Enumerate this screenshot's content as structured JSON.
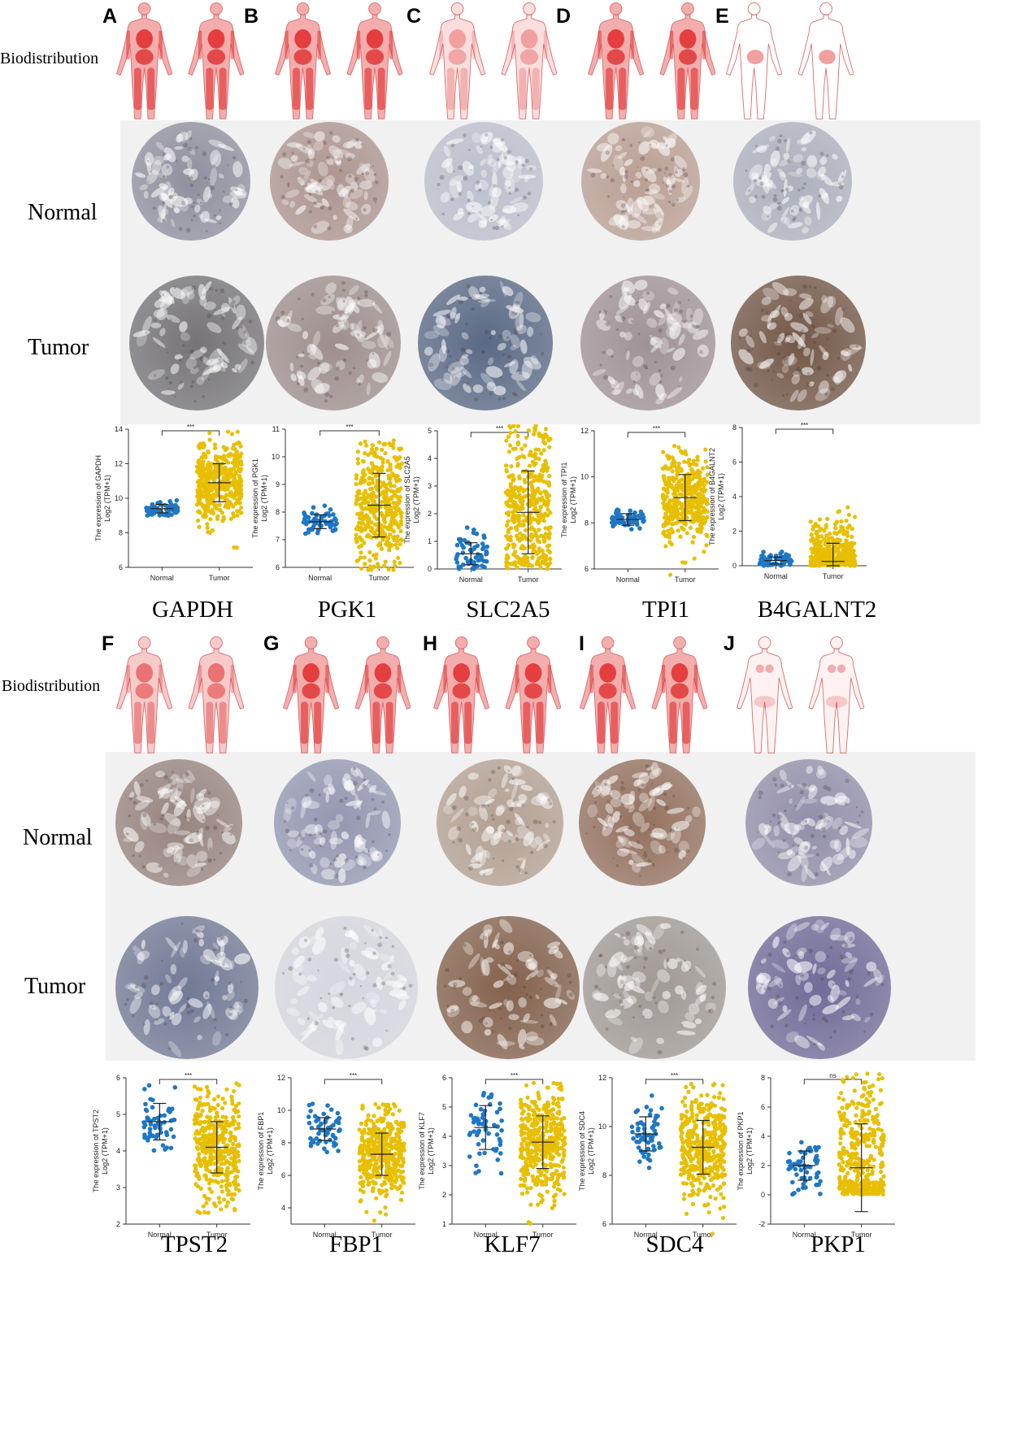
{
  "row_labels": {
    "biodistribution": "Biodistribution",
    "normal": "Normal",
    "tumor": "Tumor"
  },
  "panels": [
    {
      "letter": "A",
      "gene": "GAPDH",
      "plot": {
        "ymin": 6,
        "ymax": 14,
        "ticks": [
          6,
          8,
          10,
          12,
          14
        ],
        "sig": "***",
        "ylabel1": "The expression of GAPDH",
        "ylabel2": "Log2 (TPM+1)",
        "normal": {
          "mean": 9.4,
          "sd": 0.25,
          "lo": 9.0,
          "hi": 10.2
        },
        "tumor": {
          "mean": 10.9,
          "sd": 1.1,
          "lo": 6.5,
          "hi": 13.9
        }
      },
      "bio": "high",
      "normal_stain": "#8a8b9a",
      "tumor_stain": "#6f6d72"
    },
    {
      "letter": "B",
      "gene": "PGK1",
      "plot": {
        "ymin": 6,
        "ymax": 11,
        "ticks": [
          6,
          7,
          8,
          9,
          10,
          11
        ],
        "sig": "***",
        "ylabel1": "The expression of PGK1",
        "ylabel2": "Log2 (TPM+1)",
        "normal": {
          "mean": 7.65,
          "sd": 0.25,
          "lo": 7.2,
          "hi": 8.4
        },
        "tumor": {
          "mean": 8.25,
          "sd": 1.15,
          "lo": 5.9,
          "hi": 10.6
        }
      },
      "bio": "high",
      "normal_stain": "#a9908a",
      "tumor_stain": "#9a8a88"
    },
    {
      "letter": "C",
      "gene": "SLC2A5",
      "plot": {
        "ymin": 0,
        "ymax": 5,
        "ticks": [
          0,
          1,
          2,
          3,
          4,
          5
        ],
        "sig": "***",
        "ylabel1": "The expression of SLC2A5",
        "ylabel2": "Log2 (TPM+1)",
        "normal": {
          "mean": 0.55,
          "sd": 0.4,
          "lo": 0,
          "hi": 3.3
        },
        "tumor": {
          "mean": 2.05,
          "sd": 1.5,
          "lo": 0,
          "hi": 5.2
        }
      },
      "bio": "low",
      "normal_stain": "#b9bccb",
      "tumor_stain": "#52627f"
    },
    {
      "letter": "D",
      "gene": "TPI1",
      "plot": {
        "ymin": 6,
        "ymax": 12,
        "ticks": [
          6,
          8,
          10,
          12
        ],
        "sig": "***",
        "ylabel1": "The expression of TPI1",
        "ylabel2": "Log2 (TPM+1)",
        "normal": {
          "mean": 8.15,
          "sd": 0.25,
          "lo": 7.7,
          "hi": 8.6
        },
        "tumor": {
          "mean": 9.1,
          "sd": 1.0,
          "lo": 5.3,
          "hi": 11.4
        }
      },
      "bio": "high",
      "normal_stain": "#b79b8f",
      "tumor_stain": "#9b8d92"
    },
    {
      "letter": "E",
      "gene": "B4GALNT2",
      "plot": {
        "ymin": 0,
        "ymax": 8,
        "ticks": [
          0,
          2,
          4,
          6,
          8
        ],
        "sig": "***",
        "ylabel1": "The expression of B4GALNT2",
        "ylabel2": "Log2 (TPM+1)",
        "normal": {
          "mean": 0.3,
          "sd": 0.2,
          "lo": 0,
          "hi": 1.0
        },
        "tumor": {
          "mean": 0.25,
          "sd": 1.05,
          "lo": 0,
          "hi": 7.2
        }
      },
      "bio": "gut",
      "normal_stain": "#a9adbb",
      "tumor_stain": "#6c4f3e"
    },
    {
      "letter": "F",
      "gene": "TPST2",
      "plot": {
        "ymin": 2,
        "ymax": 6,
        "ticks": [
          2,
          3,
          4,
          5,
          6
        ],
        "sig": "***",
        "ylabel1": "The expression of TPST2",
        "ylabel2": "Log2 (TPM+1)",
        "normal": {
          "mean": 4.8,
          "sd": 0.5,
          "lo": 4.0,
          "hi": 5.8
        },
        "tumor": {
          "mean": 4.1,
          "sd": 0.7,
          "lo": 2.3,
          "hi": 5.9
        }
      },
      "bio": "mid",
      "normal_stain": "#927e78",
      "tumor_stain": "#6b7390"
    },
    {
      "letter": "G",
      "gene": "FBP1",
      "plot": {
        "ymin": 3,
        "ymax": 12,
        "ticks": [
          4,
          6,
          8,
          10,
          12
        ],
        "sig": "***",
        "ylabel1": "The expression of FBP1",
        "ylabel2": "Log2 (TPM+1)",
        "normal": {
          "mean": 8.85,
          "sd": 0.7,
          "lo": 7.3,
          "hi": 10.6
        },
        "tumor": {
          "mean": 7.3,
          "sd": 1.3,
          "lo": 3.2,
          "hi": 10.4
        }
      },
      "bio": "high",
      "normal_stain": "#8e93ae",
      "tumor_stain": "#d3d5dd"
    },
    {
      "letter": "H",
      "gene": "KLF7",
      "plot": {
        "ymin": 1,
        "ymax": 6,
        "ticks": [
          1,
          2,
          3,
          4,
          5,
          6
        ],
        "sig": "***",
        "ylabel1": "The expression of KLF7",
        "ylabel2": "Log2 (TPM+1)",
        "normal": {
          "mean": 4.3,
          "sd": 0.75,
          "lo": 2.3,
          "hi": 5.5
        },
        "tumor": {
          "mean": 3.8,
          "sd": 0.9,
          "lo": 1.0,
          "hi": 5.9
        }
      },
      "bio": "high",
      "normal_stain": "#b09c8e",
      "tumor_stain": "#7e5a44"
    },
    {
      "letter": "I",
      "gene": "SDC4",
      "plot": {
        "ymin": 6,
        "ymax": 12,
        "ticks": [
          6,
          8,
          10,
          12
        ],
        "sig": "***",
        "ylabel1": "The expression of SDC4",
        "ylabel2": "Log2 (TPM+1)",
        "normal": {
          "mean": 9.7,
          "sd": 0.7,
          "lo": 8.2,
          "hi": 11.5
        },
        "tumor": {
          "mean": 9.15,
          "sd": 1.1,
          "lo": 5.6,
          "hi": 11.8
        }
      },
      "bio": "high",
      "normal_stain": "#8f6a57",
      "tumor_stain": "#9c958f"
    },
    {
      "letter": "J",
      "gene": "PKP1",
      "plot": {
        "ymin": -2,
        "ymax": 8,
        "ticks": [
          -2,
          0,
          2,
          4,
          6,
          8
        ],
        "sig": "ns",
        "ylabel1": "The expression of PKP1",
        "ylabel2": "Log2 (TPM+1)",
        "normal": {
          "mean": 2.0,
          "sd": 1.0,
          "lo": 0,
          "hi": 4.1
        },
        "tumor": {
          "mean": 1.85,
          "sd": 3.0,
          "lo": 0,
          "hi": 8.6
        }
      },
      "bio": "skin",
      "normal_stain": "#8d8aa6",
      "tumor_stain": "#6a6493"
    }
  ],
  "x_labels": {
    "normal": "Normal",
    "tumor": "Tumor"
  },
  "colors": {
    "normal_points": "#1f77c4",
    "tumor_points": "#e8bf00",
    "body_outline": "#d96b6b",
    "organ_red": "#e02a2a",
    "ihc_band": "#f1f1f1"
  }
}
